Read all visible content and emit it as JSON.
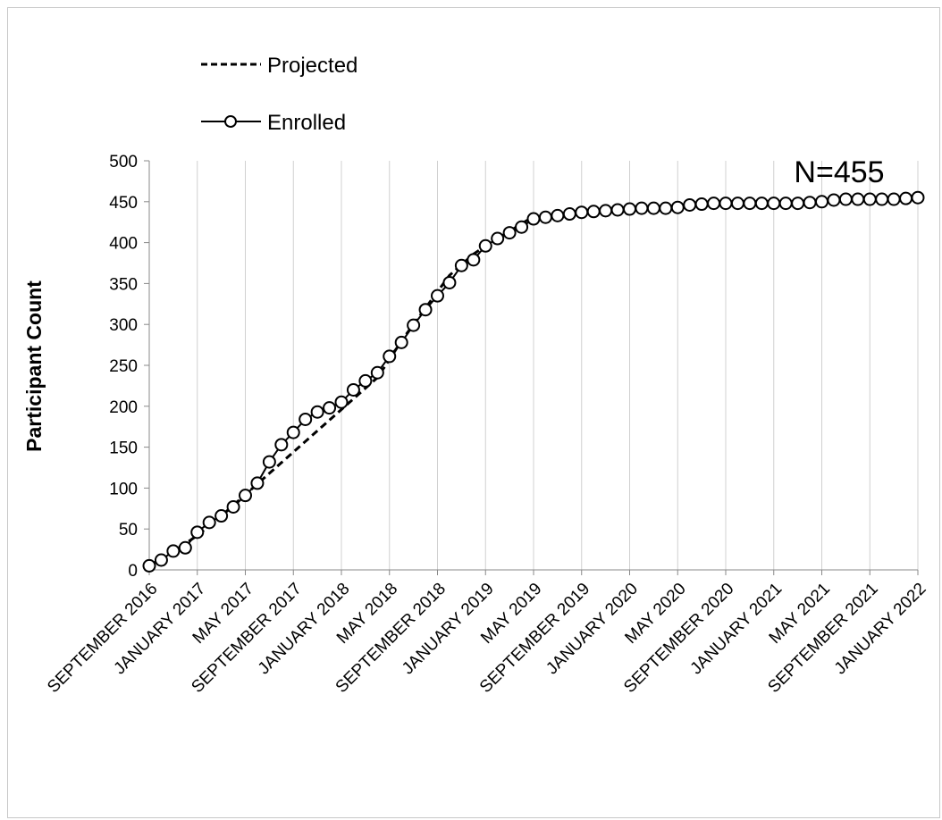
{
  "chart_data": {
    "type": "line",
    "title": "",
    "xlabel": "",
    "ylabel": "Participant Count",
    "ylim": [
      0,
      500
    ],
    "yticks": [
      "0",
      "50",
      "100",
      "150",
      "200",
      "250",
      "300",
      "350",
      "400",
      "450",
      "500"
    ],
    "xticks": [
      "SEPTEMBER 2016",
      "JANUARY  2017",
      "MAY    2017",
      "SEPTEMBER 2017",
      "JANUARY  2018",
      "MAY    2018",
      "SEPTEMBER 2018",
      "JANUARY  2019",
      "MAY    2019",
      "SEPTEMBER 2019",
      "JANUARY  2020",
      "MAY    2020",
      "SEPTEMBER 2020",
      "JANUARY  2021",
      "MAY    2021",
      "SEPTEMBER 2021",
      "JANUARY  2022"
    ],
    "xlim": [
      0,
      64
    ],
    "grid": "vertical",
    "legend": "top-left",
    "annotation": "N=455",
    "series": [
      {
        "name": "Projected",
        "style": "dashed",
        "color": "#000000",
        "x": [
          0,
          1,
          2,
          3,
          4,
          5,
          6,
          7,
          8,
          9,
          10,
          11,
          12,
          13,
          14,
          15,
          16,
          17,
          18,
          19,
          20,
          21,
          22,
          23,
          24,
          25,
          26,
          27,
          28,
          29,
          30,
          31,
          32
        ],
        "values": [
          5,
          14,
          23,
          32,
          42,
          54,
          66,
          79,
          92,
          105,
          118,
          131,
          144,
          157,
          170,
          183,
          196,
          209,
          222,
          235,
          257,
          280,
          300,
          320,
          340,
          360,
          373,
          386,
          396,
          405,
          414,
          423,
          432
        ]
      },
      {
        "name": "Enrolled",
        "style": "solid-circle",
        "color": "#000000",
        "x": [
          0,
          1,
          2,
          3,
          4,
          5,
          6,
          7,
          8,
          9,
          10,
          11,
          12,
          13,
          14,
          15,
          16,
          17,
          18,
          19,
          20,
          21,
          22,
          23,
          24,
          25,
          26,
          27,
          28,
          29,
          30,
          31,
          32,
          33,
          34,
          35,
          36,
          37,
          38,
          39,
          40,
          41,
          42,
          43,
          44,
          45,
          46,
          47,
          48,
          49,
          50,
          51,
          52,
          53,
          54,
          55,
          56,
          57,
          58,
          59,
          60,
          61,
          62,
          63,
          64
        ],
        "values": [
          5,
          12,
          23,
          27,
          46,
          58,
          66,
          77,
          91,
          106,
          132,
          153,
          168,
          184,
          193,
          198,
          205,
          220,
          231,
          241,
          261,
          278,
          299,
          318,
          335,
          351,
          372,
          379,
          396,
          405,
          412,
          419,
          429,
          431,
          433,
          435,
          437,
          438,
          439,
          440,
          441,
          442,
          442,
          442,
          443,
          446,
          447,
          448,
          448,
          448,
          448,
          448,
          448,
          448,
          448,
          449,
          450,
          452,
          453,
          453,
          453,
          453,
          453,
          454,
          455
        ]
      }
    ]
  }
}
